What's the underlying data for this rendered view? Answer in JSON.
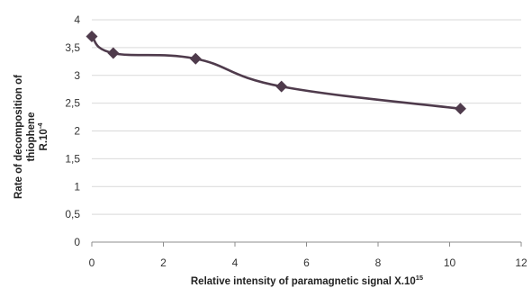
{
  "chart_data": {
    "type": "line",
    "xlabel": {
      "text": "Relative intensity of paramagnetic signal X.10",
      "sup": "15"
    },
    "ylabel": {
      "line1": "Rate of decomposition of",
      "line2": "thiophene",
      "line3": "R.10",
      "line3_sup": "-4"
    },
    "xlim": [
      0,
      12
    ],
    "ylim": [
      0,
      4
    ],
    "x_ticks": [
      "0",
      "2",
      "4",
      "6",
      "8",
      "10",
      "12"
    ],
    "y_ticks": [
      "0",
      "0,5",
      "1",
      "1,5",
      "2",
      "2,5",
      "3",
      "3,5",
      "4"
    ],
    "grid": "horizontal",
    "smooth": true,
    "series": [
      {
        "x": [
          0,
          0.6,
          2.9,
          5.3,
          10.3
        ],
        "y": [
          3.7,
          3.4,
          3.3,
          2.8,
          2.4
        ],
        "marker": "diamond"
      }
    ],
    "colors": {
      "line": "#4f3b4c",
      "marker": "#4f3b4c",
      "grid": "#d9d9d9",
      "axis": "#8c8c8c"
    }
  }
}
